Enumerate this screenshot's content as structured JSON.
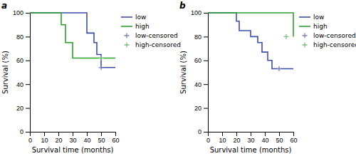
{
  "chart_data": [
    {
      "type": "step",
      "title": "a",
      "xlabel": "Survival time (months)",
      "ylabel": "Survival (%)",
      "xlim": [
        0,
        60
      ],
      "ylim": [
        0,
        100
      ],
      "xticks": [
        0,
        10,
        20,
        30,
        40,
        50,
        60
      ],
      "yticks": [
        0,
        20,
        40,
        60,
        80,
        100
      ],
      "legend": "upper right",
      "series": [
        {
          "name": "low",
          "color": "#3b4ea8",
          "x": [
            0,
            35,
            40,
            45,
            47,
            50,
            60
          ],
          "values": [
            100,
            100,
            83,
            75,
            65,
            54,
            54
          ]
        },
        {
          "name": "high",
          "color": "#2e9e2e",
          "x": [
            0,
            22,
            25,
            30,
            60
          ],
          "values": [
            100,
            90,
            75,
            62,
            62
          ]
        },
        {
          "name": "low-censored",
          "type": "scatter",
          "marker": "plus",
          "color": "#7f7fbf",
          "x": [
            50
          ],
          "values": [
            54
          ]
        },
        {
          "name": "high-censored",
          "type": "scatter",
          "marker": "plus",
          "color": "#7fbf7f",
          "x": [
            50
          ],
          "values": [
            62
          ]
        }
      ]
    },
    {
      "type": "step",
      "title": "b",
      "xlabel": "Survival time (months)",
      "ylabel": "Survival (%)",
      "xlim": [
        0,
        60
      ],
      "ylim": [
        0,
        100
      ],
      "xticks": [
        0,
        10,
        20,
        30,
        40,
        50,
        60
      ],
      "yticks": [
        0,
        20,
        40,
        60,
        80,
        100
      ],
      "legend": "upper right",
      "series": [
        {
          "name": "low",
          "color": "#3b4ea8",
          "x": [
            0,
            20,
            22,
            30,
            35,
            38,
            42,
            45,
            50,
            60
          ],
          "values": [
            100,
            93,
            85,
            80,
            75,
            67,
            60,
            53,
            53,
            53
          ]
        },
        {
          "name": "high",
          "color": "#2e9e2e",
          "x": [
            0,
            35,
            60
          ],
          "values": [
            100,
            100,
            80
          ]
        },
        {
          "name": "low-censored",
          "type": "scatter",
          "marker": "plus",
          "color": "#7f7fbf",
          "x": [
            50
          ],
          "values": [
            53
          ]
        },
        {
          "name": "high-censored",
          "type": "scatter",
          "marker": "plus",
          "color": "#7fbf7f",
          "x": [
            55
          ],
          "values": [
            80
          ]
        }
      ]
    }
  ]
}
